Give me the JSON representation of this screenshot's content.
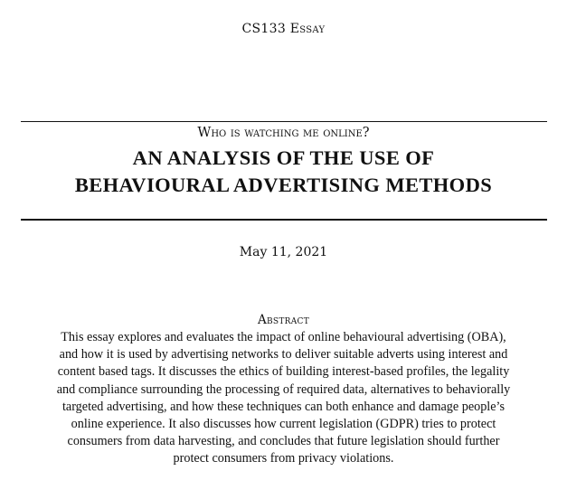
{
  "document": {
    "header_label": "CS133 Essay",
    "subtitle": "Who is watching me online?",
    "title_lines": [
      "AN ANALYSIS OF THE USE OF",
      "BEHAVIOURAL ADVERTISING METHODS"
    ],
    "date": "May 11, 2021",
    "abstract_heading": "Abstract",
    "abstract_lines": [
      "This essay explores and evaluates the impact of online behavioural advertising (OBA),",
      "and how it is used by advertising networks to deliver suitable adverts using interest and",
      "content based tags. It discusses the ethics of building interest-based profiles, the legality",
      "and compliance surrounding the processing of required data, alternatives to behaviorally",
      "targeted advertising, and how these techniques can both enhance and damage people’s",
      "online experience. It also discusses how current legislation (GDPR) tries to protect",
      "consumers from data harvesting, and concludes that future legislation should further",
      "protect consumers from privacy violations."
    ]
  }
}
